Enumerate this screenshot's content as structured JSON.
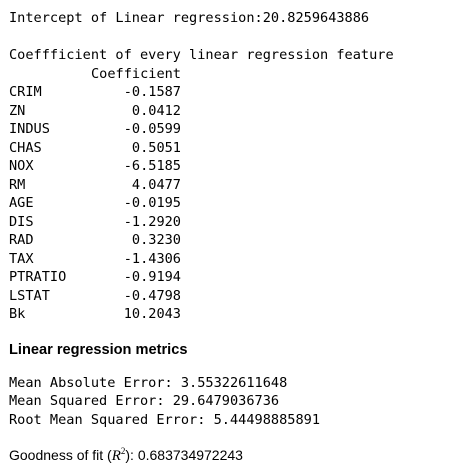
{
  "intercept": {
    "label": "Intercept of Linear regression:",
    "value": "20.8259643886"
  },
  "coefficients": {
    "title": "Coeffficient of every linear regression feature",
    "column_header": "Coefficient",
    "rows": [
      {
        "feature": "CRIM",
        "value": "-0.1587"
      },
      {
        "feature": "ZN",
        "value": "0.0412"
      },
      {
        "feature": "INDUS",
        "value": "-0.0599"
      },
      {
        "feature": "CHAS",
        "value": "0.5051"
      },
      {
        "feature": "NOX",
        "value": "-6.5185"
      },
      {
        "feature": "RM",
        "value": "4.0477"
      },
      {
        "feature": "AGE",
        "value": "-0.0195"
      },
      {
        "feature": "DIS",
        "value": "-1.2920"
      },
      {
        "feature": "RAD",
        "value": "0.3230"
      },
      {
        "feature": "TAX",
        "value": "-1.4306"
      },
      {
        "feature": "PTRATIO",
        "value": "-0.9194"
      },
      {
        "feature": "LSTAT",
        "value": "-0.4798"
      },
      {
        "feature": "Bk",
        "value": "10.2043"
      }
    ]
  },
  "metrics": {
    "heading": "Linear regression metrics",
    "mae_label": "Mean Absolute Error: ",
    "mae_value": "3.55322611648",
    "mse_label": "Mean Squared Error: ",
    "mse_value": "29.6479036736",
    "rmse_label": "Root Mean Squared Error: ",
    "rmse_value": "5.44498885891"
  },
  "fit": {
    "label_pre": "Goodness of fit (",
    "symbol": "R",
    "exponent": "2",
    "label_post": "): ",
    "value": "0.683734972243"
  }
}
